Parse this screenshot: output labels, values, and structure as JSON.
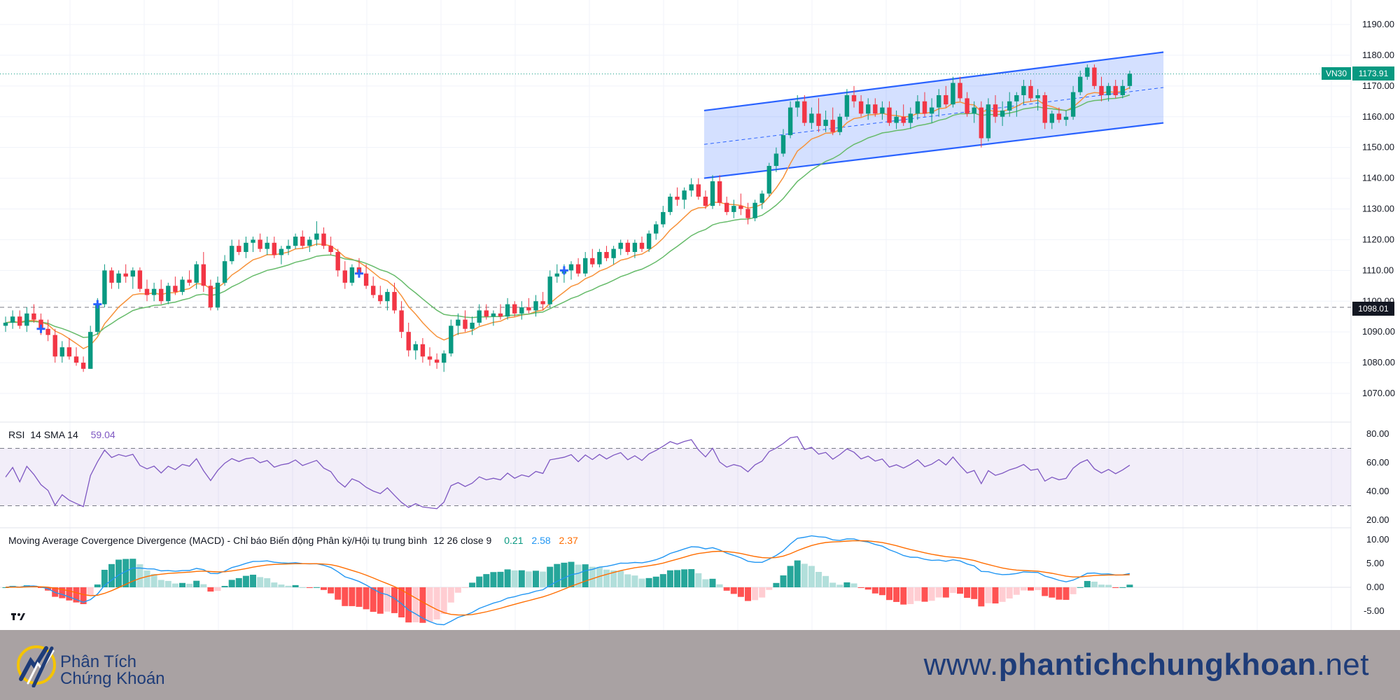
{
  "colors": {
    "up": "#089981",
    "down": "#f23645",
    "ma_fast": "#f7923a",
    "ma_slow": "#66bb6a",
    "channel": "#2962ff",
    "rsi": "#7e57c2",
    "macd_line": "#2196f3",
    "signal_line": "#ff6d00",
    "footer_bg": "#a9a2a3",
    "brand": "#1e3c78"
  },
  "chart_data": [
    {
      "type": "candlestick",
      "pane": "price",
      "symbol": "VN30",
      "last_price": "1173.91",
      "horizontal_level": "1098.01",
      "ylim": [
        1060,
        1196
      ],
      "y_ticks": [
        "1190.00",
        "1180.00",
        "1170.00",
        "1160.00",
        "1150.00",
        "1140.00",
        "1130.00",
        "1120.00",
        "1110.00",
        "1100.00",
        "1090.00",
        "1080.00",
        "1070.00"
      ],
      "candles_ohlc": [
        [
          1092,
          1095,
          1090,
          1093
        ],
        [
          1093,
          1097,
          1091,
          1095
        ],
        [
          1095,
          1097,
          1091,
          1092
        ],
        [
          1092,
          1098,
          1090,
          1096
        ],
        [
          1096,
          1099,
          1093,
          1094
        ],
        [
          1094,
          1096,
          1089,
          1091
        ],
        [
          1091,
          1094,
          1087,
          1089
        ],
        [
          1089,
          1091,
          1080,
          1082
        ],
        [
          1082,
          1087,
          1080,
          1085
        ],
        [
          1085,
          1088,
          1081,
          1082
        ],
        [
          1082,
          1085,
          1079,
          1080
        ],
        [
          1080,
          1082,
          1077,
          1078
        ],
        [
          1078,
          1092,
          1078,
          1090
        ],
        [
          1090,
          1101,
          1089,
          1099
        ],
        [
          1099,
          1112,
          1098,
          1110
        ],
        [
          1110,
          1111,
          1104,
          1106
        ],
        [
          1106,
          1110,
          1104,
          1109
        ],
        [
          1109,
          1112,
          1106,
          1108
        ],
        [
          1108,
          1111,
          1104,
          1110
        ],
        [
          1110,
          1111,
          1103,
          1104
        ],
        [
          1104,
          1107,
          1100,
          1102
        ],
        [
          1102,
          1106,
          1100,
          1104
        ],
        [
          1104,
          1107,
          1099,
          1100
        ],
        [
          1100,
          1106,
          1099,
          1105
        ],
        [
          1105,
          1108,
          1102,
          1103
        ],
        [
          1103,
          1108,
          1102,
          1107
        ],
        [
          1107,
          1110,
          1105,
          1106
        ],
        [
          1106,
          1113,
          1104,
          1112
        ],
        [
          1112,
          1116,
          1103,
          1105
        ],
        [
          1105,
          1107,
          1097,
          1098
        ],
        [
          1098,
          1108,
          1097,
          1106
        ],
        [
          1106,
          1115,
          1105,
          1113
        ],
        [
          1113,
          1120,
          1112,
          1118
        ],
        [
          1118,
          1120,
          1115,
          1116
        ],
        [
          1116,
          1121,
          1114,
          1119
        ],
        [
          1119,
          1121,
          1116,
          1120
        ],
        [
          1120,
          1122,
          1116,
          1117
        ],
        [
          1117,
          1121,
          1115,
          1119
        ],
        [
          1119,
          1121,
          1114,
          1115
        ],
        [
          1115,
          1118,
          1112,
          1117
        ],
        [
          1117,
          1120,
          1115,
          1118
        ],
        [
          1118,
          1122,
          1117,
          1121
        ],
        [
          1121,
          1123,
          1117,
          1118
        ],
        [
          1118,
          1121,
          1116,
          1120
        ],
        [
          1120,
          1126,
          1118,
          1122
        ],
        [
          1122,
          1124,
          1117,
          1118
        ],
        [
          1118,
          1121,
          1115,
          1116
        ],
        [
          1116,
          1117,
          1108,
          1110
        ],
        [
          1110,
          1113,
          1104,
          1106
        ],
        [
          1106,
          1112,
          1105,
          1111
        ],
        [
          1111,
          1114,
          1108,
          1109
        ],
        [
          1109,
          1112,
          1104,
          1105
        ],
        [
          1105,
          1108,
          1101,
          1102
        ],
        [
          1102,
          1105,
          1099,
          1100
        ],
        [
          1100,
          1104,
          1097,
          1103
        ],
        [
          1103,
          1106,
          1096,
          1097
        ],
        [
          1097,
          1100,
          1088,
          1090
        ],
        [
          1090,
          1093,
          1082,
          1084
        ],
        [
          1084,
          1087,
          1081,
          1086
        ],
        [
          1086,
          1088,
          1080,
          1082
        ],
        [
          1082,
          1085,
          1079,
          1081
        ],
        [
          1081,
          1083,
          1078,
          1080
        ],
        [
          1080,
          1084,
          1077,
          1083
        ],
        [
          1083,
          1094,
          1082,
          1092
        ],
        [
          1092,
          1096,
          1089,
          1094
        ],
        [
          1094,
          1097,
          1090,
          1091
        ],
        [
          1091,
          1095,
          1089,
          1093
        ],
        [
          1093,
          1099,
          1092,
          1097
        ],
        [
          1097,
          1099,
          1094,
          1095
        ],
        [
          1095,
          1097,
          1092,
          1096
        ],
        [
          1096,
          1099,
          1094,
          1095
        ],
        [
          1095,
          1101,
          1094,
          1099
        ],
        [
          1099,
          1100,
          1095,
          1096
        ],
        [
          1096,
          1100,
          1094,
          1098
        ],
        [
          1098,
          1101,
          1096,
          1097
        ],
        [
          1097,
          1102,
          1095,
          1100
        ],
        [
          1100,
          1103,
          1097,
          1099
        ],
        [
          1099,
          1110,
          1098,
          1108
        ],
        [
          1108,
          1112,
          1106,
          1109
        ],
        [
          1109,
          1112,
          1106,
          1110
        ],
        [
          1110,
          1113,
          1107,
          1112
        ],
        [
          1112,
          1114,
          1108,
          1109
        ],
        [
          1109,
          1116,
          1108,
          1114
        ],
        [
          1114,
          1117,
          1111,
          1112
        ],
        [
          1112,
          1117,
          1111,
          1116
        ],
        [
          1116,
          1118,
          1113,
          1114
        ],
        [
          1114,
          1118,
          1112,
          1117
        ],
        [
          1117,
          1120,
          1115,
          1119
        ],
        [
          1119,
          1120,
          1115,
          1116
        ],
        [
          1116,
          1120,
          1114,
          1119
        ],
        [
          1119,
          1121,
          1116,
          1117
        ],
        [
          1117,
          1123,
          1116,
          1122
        ],
        [
          1122,
          1126,
          1120,
          1125
        ],
        [
          1125,
          1131,
          1124,
          1129
        ],
        [
          1129,
          1135,
          1128,
          1134
        ],
        [
          1134,
          1137,
          1131,
          1133
        ],
        [
          1133,
          1137,
          1130,
          1136
        ],
        [
          1136,
          1140,
          1134,
          1138
        ],
        [
          1138,
          1140,
          1133,
          1134
        ],
        [
          1134,
          1136,
          1130,
          1131
        ],
        [
          1131,
          1141,
          1130,
          1139
        ],
        [
          1139,
          1141,
          1131,
          1132
        ],
        [
          1132,
          1134,
          1128,
          1129
        ],
        [
          1129,
          1133,
          1127,
          1131
        ],
        [
          1131,
          1135,
          1128,
          1130
        ],
        [
          1130,
          1132,
          1125,
          1127
        ],
        [
          1127,
          1133,
          1126,
          1132
        ],
        [
          1132,
          1136,
          1130,
          1135
        ],
        [
          1135,
          1145,
          1134,
          1144
        ],
        [
          1144,
          1150,
          1142,
          1148
        ],
        [
          1148,
          1156,
          1147,
          1154
        ],
        [
          1154,
          1165,
          1153,
          1163
        ],
        [
          1163,
          1167,
          1160,
          1165
        ],
        [
          1165,
          1167,
          1157,
          1158
        ],
        [
          1158,
          1163,
          1156,
          1161
        ],
        [
          1161,
          1166,
          1155,
          1157
        ],
        [
          1157,
          1162,
          1155,
          1159
        ],
        [
          1159,
          1163,
          1154,
          1155
        ],
        [
          1155,
          1161,
          1154,
          1160
        ],
        [
          1160,
          1169,
          1159,
          1167
        ],
        [
          1167,
          1170,
          1163,
          1165
        ],
        [
          1165,
          1167,
          1160,
          1161
        ],
        [
          1161,
          1166,
          1159,
          1164
        ],
        [
          1164,
          1166,
          1160,
          1161
        ],
        [
          1161,
          1165,
          1159,
          1163
        ],
        [
          1163,
          1165,
          1157,
          1158
        ],
        [
          1158,
          1162,
          1156,
          1160
        ],
        [
          1160,
          1164,
          1157,
          1158
        ],
        [
          1158,
          1163,
          1156,
          1161
        ],
        [
          1161,
          1167,
          1159,
          1165
        ],
        [
          1165,
          1168,
          1160,
          1161
        ],
        [
          1161,
          1166,
          1158,
          1163
        ],
        [
          1163,
          1169,
          1160,
          1167
        ],
        [
          1167,
          1170,
          1163,
          1164
        ],
        [
          1164,
          1173,
          1163,
          1171
        ],
        [
          1171,
          1173,
          1165,
          1166
        ],
        [
          1166,
          1168,
          1160,
          1161
        ],
        [
          1161,
          1165,
          1158,
          1163
        ],
        [
          1163,
          1165,
          1150,
          1153
        ],
        [
          1153,
          1166,
          1152,
          1164
        ],
        [
          1164,
          1167,
          1158,
          1160
        ],
        [
          1160,
          1165,
          1157,
          1162
        ],
        [
          1162,
          1168,
          1160,
          1165
        ],
        [
          1165,
          1168,
          1160,
          1167
        ],
        [
          1167,
          1172,
          1164,
          1170
        ],
        [
          1170,
          1172,
          1165,
          1166
        ],
        [
          1166,
          1169,
          1162,
          1167
        ],
        [
          1167,
          1168,
          1156,
          1158
        ],
        [
          1158,
          1162,
          1156,
          1161
        ],
        [
          1161,
          1163,
          1158,
          1159
        ],
        [
          1159,
          1162,
          1157,
          1160
        ],
        [
          1160,
          1170,
          1159,
          1168
        ],
        [
          1168,
          1175,
          1167,
          1173
        ],
        [
          1173,
          1177,
          1172,
          1176
        ],
        [
          1176,
          1177,
          1169,
          1170
        ],
        [
          1170,
          1173,
          1165,
          1167
        ],
        [
          1167,
          1171,
          1165,
          1170
        ],
        [
          1170,
          1172,
          1166,
          1167
        ],
        [
          1167,
          1172,
          1166,
          1170
        ],
        [
          1170,
          1175,
          1169,
          1174
        ]
      ],
      "buy_markers_at_candle": [
        5,
        13,
        50,
        79
      ],
      "trend_channel": {
        "start_candle": 99,
        "end_candle": 161,
        "upper": [
          1162,
          1181
        ],
        "mid": [
          1151,
          1169.5
        ],
        "lower": [
          1140,
          1158
        ]
      }
    },
    {
      "type": "line",
      "pane": "rsi",
      "label": "RSI",
      "params": "14 SMA 14",
      "value": "59.04",
      "ylim": [
        15,
        85
      ],
      "band": [
        30,
        70
      ],
      "y_ticks": [
        "80.00",
        "60.00",
        "40.00",
        "20.00"
      ]
    },
    {
      "type": "line+histogram",
      "pane": "macd",
      "label": "Moving Average Covergence Divergence (MACD) - Chỉ báo Biến động Phân kỳ/Hội tụ trung bình",
      "params": "12 26 close 9",
      "values": [
        "0.21",
        "2.58",
        "2.37"
      ],
      "ylim": [
        -8,
        12
      ],
      "y_ticks": [
        "10.00",
        "5.00",
        "0.00",
        "-5.00"
      ]
    }
  ],
  "footer": {
    "brand_line1": "Phân Tích",
    "brand_line2": "Chứng Khoán",
    "url_prefix": "www.",
    "url_domain": "phantichchungkhoan",
    "url_suffix": ".net"
  }
}
